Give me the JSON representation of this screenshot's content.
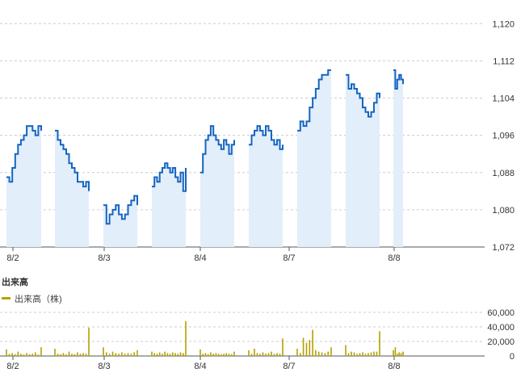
{
  "colors": {
    "price_line": "#1565c0",
    "price_fill": "#e3eefb",
    "volume_bar": "#b3a100",
    "grid": "#cccccc",
    "axis": "#555555"
  },
  "chart_data": [
    {
      "type": "line",
      "name": "price",
      "title": "",
      "x_tick_labels": [
        "8/2",
        "8/3",
        "8/4",
        "8/7",
        "8/8"
      ],
      "y_ticks": [
        1072,
        1080,
        1088,
        1096,
        1104,
        1112,
        1120
      ],
      "y_tick_labels": [
        "1,072",
        "1,080",
        "1,088",
        "1,096",
        "1,104",
        "1,112",
        "1,120"
      ],
      "ylim": [
        1072,
        1123
      ],
      "grid": true,
      "sessions": [
        {
          "day": "8/2",
          "half": "AM",
          "values": [
            1087,
            1086,
            1089,
            1092,
            1094,
            1095,
            1096,
            1098,
            1098,
            1097,
            1096,
            1098,
            1097
          ]
        },
        {
          "day": "8/2",
          "half": "PM",
          "values": [
            1097,
            1095,
            1094,
            1093,
            1092,
            1090,
            1089,
            1088,
            1086,
            1086,
            1085,
            1086,
            1084
          ]
        },
        {
          "day": "8/3",
          "half": "AM",
          "values": [
            1081,
            1077,
            1079,
            1080,
            1081,
            1079,
            1078,
            1079,
            1081,
            1082,
            1083,
            1081
          ]
        },
        {
          "day": "8/3",
          "half": "PM",
          "values": [
            1085,
            1087,
            1086,
            1088,
            1089,
            1090,
            1089,
            1088,
            1089,
            1087,
            1086,
            1088,
            1084,
            1089
          ]
        },
        {
          "day": "8/4",
          "half": "AM",
          "values": [
            1088,
            1092,
            1095,
            1096,
            1098,
            1096,
            1095,
            1094,
            1093,
            1095,
            1094,
            1092,
            1094,
            1095
          ]
        },
        {
          "day": "8/4",
          "half": "PM",
          "values": [
            1094,
            1096,
            1097,
            1098,
            1097,
            1096,
            1098,
            1097,
            1095,
            1094,
            1095,
            1093,
            1094
          ]
        },
        {
          "day": "8/7",
          "half": "AM",
          "values": [
            1097,
            1099,
            1098,
            1099,
            1102,
            1104,
            1106,
            1108,
            1109,
            1109,
            1110,
            1110
          ]
        },
        {
          "day": "8/7",
          "half": "PM",
          "values": [
            1109,
            1106,
            1107,
            1106,
            1105,
            1104,
            1102,
            1101,
            1100,
            1101,
            1103,
            1105,
            1104
          ]
        },
        {
          "day": "8/8",
          "half": "AM",
          "values": [
            1110,
            1106,
            1108,
            1109,
            1108,
            1107
          ]
        }
      ]
    },
    {
      "type": "bar",
      "name": "volume",
      "title": "出来高",
      "legend": [
        {
          "label": "出来高（株)"
        }
      ],
      "y_ticks": [
        0,
        20000,
        40000,
        60000
      ],
      "y_tick_labels": [
        "0",
        "20,000",
        "40,000",
        "60,000"
      ],
      "ylim": [
        0,
        60000
      ],
      "x_tick_labels": [
        "8/2",
        "8/3",
        "8/4",
        "8/7",
        "8/8"
      ],
      "sessions": [
        {
          "day": "8/2",
          "half": "AM",
          "values": [
            9000,
            3000,
            4000,
            2500,
            6000,
            3000,
            2000,
            4000,
            2500,
            3000,
            5000,
            2000,
            12000
          ]
        },
        {
          "day": "8/2",
          "half": "PM",
          "values": [
            10000,
            3000,
            2500,
            4000,
            2000,
            6000,
            3000,
            2500,
            5000,
            3000,
            4000,
            3000,
            39000
          ]
        },
        {
          "day": "8/3",
          "half": "AM",
          "values": [
            12000,
            5000,
            3000,
            6000,
            4000,
            3000,
            5000,
            3000,
            4000,
            3000,
            5000,
            8000
          ]
        },
        {
          "day": "8/3",
          "half": "PM",
          "values": [
            6000,
            4000,
            3000,
            5000,
            3000,
            6000,
            4000,
            3000,
            5000,
            4000,
            3000,
            5000,
            4000,
            48000
          ]
        },
        {
          "day": "8/4",
          "half": "AM",
          "values": [
            9000,
            3000,
            4000,
            2500,
            5000,
            3000,
            4000,
            3000,
            2500,
            3000,
            4000,
            3000,
            2500,
            6000
          ]
        },
        {
          "day": "8/4",
          "half": "PM",
          "values": [
            8000,
            3000,
            10000,
            4000,
            3000,
            5000,
            3000,
            4000,
            6000,
            3000,
            4000,
            3000,
            24000
          ]
        },
        {
          "day": "8/7",
          "half": "AM",
          "values": [
            10000,
            4000,
            25000,
            18000,
            22000,
            36000,
            8000,
            6000,
            5000,
            4000,
            6000,
            12000
          ]
        },
        {
          "day": "8/7",
          "half": "PM",
          "values": [
            15000,
            4000,
            6000,
            5000,
            3000,
            4000,
            5000,
            3000,
            4000,
            5000,
            6000,
            6000,
            34000
          ]
        },
        {
          "day": "8/8",
          "half": "AM",
          "values": [
            8000,
            12000,
            3000,
            5000,
            4000,
            6000
          ]
        }
      ]
    }
  ]
}
